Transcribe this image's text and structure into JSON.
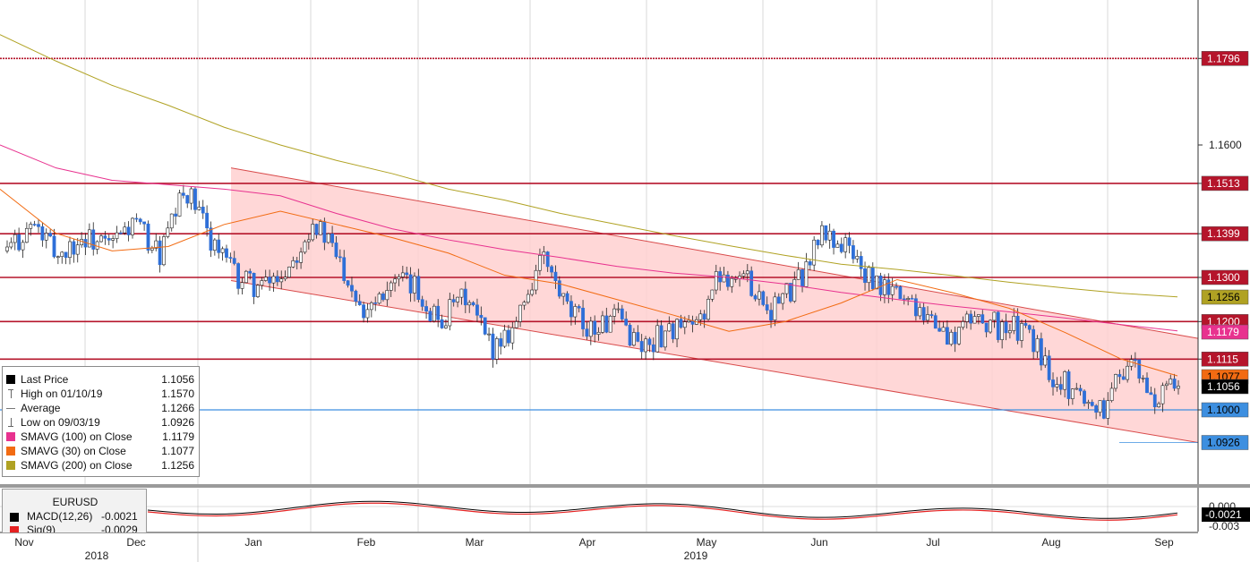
{
  "chart_data": {
    "type": "candlestick",
    "instrument": "EURUSD",
    "x_axis": {
      "months": [
        "Nov",
        "Dec",
        "Jan",
        "Feb",
        "Mar",
        "Apr",
        "May",
        "Jun",
        "Jul",
        "Aug",
        "Sep"
      ],
      "years": [
        "2018",
        "2019"
      ]
    },
    "y_axis": {
      "ticks": [
        "1.1600"
      ],
      "range": [
        1.087,
        1.19
      ]
    },
    "horizontal_levels": [
      {
        "value": 1.1796,
        "label": "1.1796",
        "color": "#b5152b",
        "style": "dotted"
      },
      {
        "value": 1.1513,
        "label": "1.1513",
        "color": "#b5152b"
      },
      {
        "value": 1.1399,
        "label": "1.1399",
        "color": "#b5152b"
      },
      {
        "value": 1.13,
        "label": "1.1300",
        "color": "#b5152b"
      },
      {
        "value": 1.12,
        "label": "1.1200",
        "color": "#b5152b"
      },
      {
        "value": 1.1115,
        "label": "1.1115",
        "color": "#b5152b"
      },
      {
        "value": 1.1,
        "label": "1.1000",
        "color": "#3d8fe0"
      }
    ],
    "value_tags": [
      {
        "label": "1.1256",
        "value": 1.1256,
        "bg": "#b0a223",
        "fg": "#000000"
      },
      {
        "label": "1.1179",
        "value": 1.1179,
        "bg": "#e8328f",
        "fg": "#ffffff"
      },
      {
        "label": "1.1077",
        "value": 1.1077,
        "bg": "#f26b12",
        "fg": "#000000"
      },
      {
        "label": "1.1056",
        "value": 1.1056,
        "bg": "#000000",
        "fg": "#ffffff"
      },
      {
        "label": "1.0926",
        "value": 1.0926,
        "bg": "#3d8fe0",
        "fg": "#000000"
      }
    ],
    "channel": {
      "upper": [
        [
          1.1548,
          1.1162
        ]
      ],
      "lower": [
        [
          1.1293,
          1.0926
        ]
      ],
      "fill": "#ffd0d0",
      "stroke": "#d84a4a"
    },
    "legend": [
      {
        "label": "Last Price",
        "value": "1.1056",
        "icon": "black-square"
      },
      {
        "label": "High on 01/10/19",
        "value": "1.1570",
        "icon": "high-marker"
      },
      {
        "label": "Average",
        "value": "1.1266",
        "icon": "average-marker"
      },
      {
        "label": "Low on 09/03/19",
        "value": "1.0926",
        "icon": "low-marker"
      },
      {
        "label": "SMAVG (100)  on Close",
        "value": "1.1179",
        "icon": "pink-square",
        "color": "#e8328f"
      },
      {
        "label": "SMAVG (30)  on Close",
        "value": "1.1077",
        "icon": "orange-square",
        "color": "#f26b12"
      },
      {
        "label": "SMAVG (200)  on Close",
        "value": "1.1256",
        "icon": "olive-square",
        "color": "#b0a223"
      }
    ],
    "macd_panel": {
      "title": "EURUSD",
      "rows": [
        {
          "label": "MACD(12,26)",
          "value": "-0.0021",
          "color": "#000000"
        },
        {
          "label": "Sig(9)",
          "value": "-0.0029",
          "color": "#e52222"
        }
      ],
      "ticks": [
        "0.000",
        "-0.003"
      ],
      "tag": "-0.0021"
    },
    "series": [
      {
        "name": "SMAVG (200)",
        "color": "#b0a223",
        "values": [
          1.185,
          1.179,
          1.1735,
          1.169,
          1.164,
          1.16,
          1.1565,
          1.1535,
          1.15,
          1.1475,
          1.1445,
          1.142,
          1.1395,
          1.1372,
          1.135,
          1.133,
          1.1318,
          1.1304,
          1.1289,
          1.1276,
          1.1264,
          1.1256
        ]
      },
      {
        "name": "SMAVG (100)",
        "color": "#e8328f",
        "values": [
          1.16,
          1.1548,
          1.152,
          1.151,
          1.15,
          1.1485,
          1.1445,
          1.141,
          1.1385,
          1.1363,
          1.1345,
          1.1325,
          1.131,
          1.13,
          1.1285,
          1.1266,
          1.125,
          1.1235,
          1.1222,
          1.1208,
          1.1193,
          1.1179
        ]
      },
      {
        "name": "SMAVG (30)",
        "color": "#f26b12",
        "values": [
          1.15,
          1.14,
          1.136,
          1.137,
          1.142,
          1.145,
          1.142,
          1.139,
          1.1355,
          1.1305,
          1.1285,
          1.125,
          1.1215,
          1.1178,
          1.12,
          1.1242,
          1.1295,
          1.1265,
          1.123,
          1.1175,
          1.1115,
          1.1077
        ]
      },
      {
        "name": "Last Price",
        "color": "#000000",
        "values": [
          1.136,
          1.142,
          1.135,
          1.139,
          1.137,
          1.1425,
          1.135,
          1.15,
          1.139,
          1.13,
          1.1275,
          1.132,
          1.143,
          1.1345,
          1.123,
          1.129,
          1.1275,
          1.12,
          1.1255,
          1.114,
          1.12,
          1.135,
          1.122,
          1.1185,
          1.1205,
          1.114,
          1.1185,
          1.118,
          1.131,
          1.13,
          1.123,
          1.128,
          1.14,
          1.137,
          1.128,
          1.1265,
          1.123,
          1.1155,
          1.1215,
          1.1185,
          1.118,
          1.1085,
          1.104,
          1.1,
          1.1115,
          1.102,
          1.1056
        ]
      }
    ]
  }
}
